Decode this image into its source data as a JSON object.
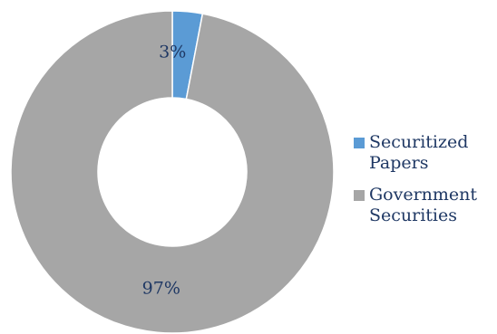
{
  "chart_data": {
    "type": "pie",
    "variant": "donut",
    "categories": [
      "Securitized Papers",
      "Government Securities"
    ],
    "values": [
      3,
      97
    ],
    "unit": "%",
    "data_labels": [
      "3%",
      "97%"
    ],
    "colors": [
      "#5b9bd5",
      "#a6a6a6"
    ],
    "legend": {
      "position": "right",
      "items": [
        {
          "label": "Securitized Papers",
          "color": "#5b9bd5"
        },
        {
          "label": "Government Securities",
          "color": "#a6a6a6"
        }
      ]
    }
  }
}
